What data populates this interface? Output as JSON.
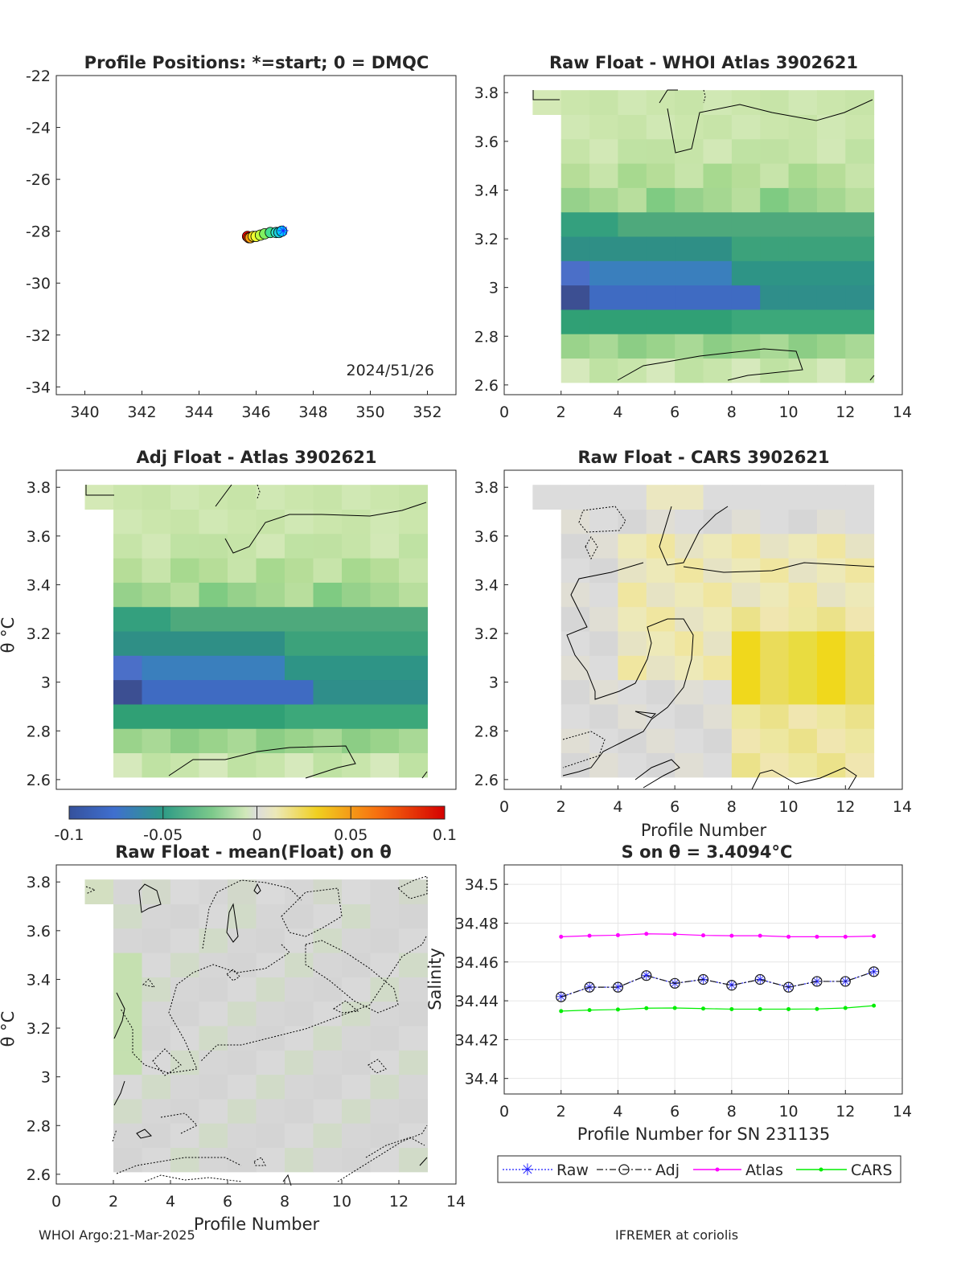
{
  "footer": {
    "left": "WHOI Argo:21-Mar-2025",
    "right": "IFREMER at coriolis"
  },
  "colors": {
    "raw": "#1f1fff",
    "adj": "#1a1a1a",
    "atlas": "#ff00ff",
    "cars": "#00ee00"
  },
  "chart_data": [
    {
      "type": "scatter",
      "title": "Profile Positions: *=start; 0 = DMQC",
      "annotation": "2024/51/26",
      "xlim": [
        339,
        353
      ],
      "ylim": [
        -34.3,
        -22
      ],
      "xticks": [
        "340",
        "342",
        "344",
        "346",
        "348",
        "350",
        "352"
      ],
      "yticks": [
        "-22",
        "-24",
        "-26",
        "-28",
        "-30",
        "-32",
        "-34"
      ],
      "points": [
        {
          "x": 346.9,
          "y": -28.0,
          "color": "#00ccff"
        },
        {
          "x": 346.8,
          "y": -28.05,
          "color": "#20d0e0"
        },
        {
          "x": 346.7,
          "y": -28.05,
          "color": "#30dcc0"
        },
        {
          "x": 346.5,
          "y": -28.05,
          "color": "#40e090"
        },
        {
          "x": 346.3,
          "y": -28.1,
          "color": "#80f060"
        },
        {
          "x": 346.15,
          "y": -28.15,
          "color": "#c0ff40"
        },
        {
          "x": 346.0,
          "y": -28.2,
          "color": "#f0ff30"
        },
        {
          "x": 345.9,
          "y": -28.2,
          "color": "#ffe020"
        },
        {
          "x": 345.8,
          "y": -28.25,
          "color": "#ffa010"
        },
        {
          "x": 345.75,
          "y": -28.25,
          "color": "#ff5000"
        },
        {
          "x": 345.7,
          "y": -28.2,
          "color": "#ff0000"
        }
      ],
      "start": {
        "x": 346.95,
        "y": -28.0
      }
    },
    {
      "type": "heatmap",
      "title": "Raw Float - WHOI Atlas  3902621",
      "xlabel": "",
      "ylabel": "",
      "xlim": [
        0,
        14
      ],
      "ylim": [
        2.56,
        3.87
      ],
      "xticks": [
        "0",
        "2",
        "4",
        "6",
        "8",
        "10",
        "12",
        "14"
      ],
      "yticks": [
        "2.6",
        "2.8",
        "3",
        "3.2",
        "3.4",
        "3.6",
        "3.8"
      ],
      "field": "atlas"
    },
    {
      "type": "heatmap",
      "title": "Adj Float - Atlas  3902621",
      "xlabel": "",
      "ylabel": "θ °C",
      "xlim": [
        0,
        14
      ],
      "ylim": [
        2.56,
        3.87
      ],
      "xticks": [],
      "yticks": [
        "2.6",
        "2.8",
        "3",
        "3.2",
        "3.4",
        "3.6",
        "3.8"
      ],
      "field": "atlas"
    },
    {
      "type": "heatmap",
      "title": "Raw Float - CARS  3902621",
      "xlabel": "Profile Number",
      "ylabel": "",
      "xlim": [
        0,
        14
      ],
      "ylim": [
        2.56,
        3.87
      ],
      "xticks": [
        "0",
        "2",
        "4",
        "6",
        "8",
        "10",
        "12",
        "14"
      ],
      "yticks": [
        "2.6",
        "2.8",
        "3",
        "3.2",
        "3.4",
        "3.6",
        "3.8"
      ],
      "field": "cars"
    },
    {
      "type": "heatmap",
      "title": "Raw Float - mean(Float) on θ",
      "xlabel": "Profile Number",
      "ylabel": "θ °C",
      "xlim": [
        0,
        14
      ],
      "ylim": [
        2.56,
        3.87
      ],
      "xticks": [
        "0",
        "2",
        "4",
        "6",
        "8",
        "10",
        "12",
        "14"
      ],
      "yticks": [
        "2.6",
        "2.8",
        "3",
        "3.2",
        "3.4",
        "3.6",
        "3.8"
      ],
      "field": "mean"
    },
    {
      "type": "line",
      "title": "S on θ = 3.4094°C",
      "xlabel": "Profile Number for SN 231135",
      "ylabel": "Salinity",
      "xlim": [
        0,
        14
      ],
      "ylim": [
        34.392,
        34.51
      ],
      "xticks": [
        "0",
        "2",
        "4",
        "6",
        "8",
        "10",
        "12",
        "14"
      ],
      "yticks": [
        "34.4",
        "34.42",
        "34.44",
        "34.46",
        "34.48",
        "34.5"
      ],
      "grid": true,
      "legend": "bottom",
      "x": [
        2,
        3,
        4,
        5,
        6,
        7,
        8,
        9,
        10,
        11,
        12,
        13
      ],
      "series": [
        {
          "name": "Raw",
          "values": [
            34.442,
            34.447,
            34.447,
            34.453,
            34.449,
            34.451,
            34.448,
            34.451,
            34.447,
            34.45,
            34.45,
            34.455
          ]
        },
        {
          "name": "Adj",
          "values": [
            34.442,
            34.447,
            34.447,
            34.453,
            34.449,
            34.451,
            34.448,
            34.451,
            34.447,
            34.45,
            34.45,
            34.455
          ]
        },
        {
          "name": "Atlas",
          "values": [
            34.473,
            34.4735,
            34.4738,
            34.4745,
            34.4743,
            34.4737,
            34.4735,
            34.4735,
            34.473,
            34.473,
            34.473,
            34.4733
          ]
        },
        {
          "name": "CARS",
          "values": [
            34.4347,
            34.4352,
            34.4355,
            34.4362,
            34.4363,
            34.436,
            34.4357,
            34.4357,
            34.4357,
            34.4358,
            34.4363,
            34.4375
          ]
        }
      ]
    }
  ],
  "colorbar": {
    "ticks": [
      "-0.1",
      "-0.05",
      "0",
      "0.05",
      "0.1"
    ],
    "range": [
      -0.1,
      0.1
    ]
  }
}
